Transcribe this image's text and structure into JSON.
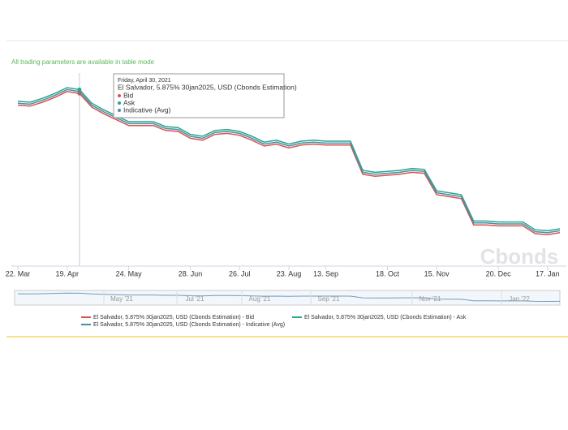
{
  "chart_data": {
    "type": "line",
    "note_text": "All trading parameters are available in table mode",
    "watermark": "Cbonds",
    "categories": [
      "22. Mar",
      null,
      null,
      null,
      "19. Apr",
      null,
      null,
      null,
      null,
      "24. May",
      null,
      null,
      null,
      null,
      "28. Jun",
      null,
      null,
      null,
      "26. Jul",
      null,
      null,
      null,
      "23. Aug",
      null,
      null,
      "13. Sep",
      null,
      null,
      null,
      null,
      "18. Oct",
      null,
      null,
      null,
      "15. Nov",
      null,
      null,
      null,
      null,
      "20. Dec",
      null,
      null,
      null,
      "17. Jan",
      null
    ],
    "ylim": [
      85,
      105
    ],
    "series": [
      {
        "name": "El Salvador, 5.875% 30jan2025, USD (Cbonds Estimation) - Bid",
        "color": "#d9534f",
        "values": [
          101.7,
          101.6,
          102.0,
          102.5,
          103.1,
          102.9,
          101.5,
          100.8,
          100.2,
          99.6,
          99.6,
          99.6,
          99.1,
          99.0,
          98.3,
          98.1,
          98.7,
          98.8,
          98.6,
          98.1,
          97.5,
          97.7,
          97.3,
          97.6,
          97.7,
          97.6,
          97.6,
          97.6,
          94.6,
          94.4,
          94.5,
          94.6,
          94.8,
          94.7,
          92.5,
          92.3,
          92.1,
          89.4,
          89.4,
          89.3,
          89.3,
          89.3,
          88.5,
          88.4,
          88.6
        ]
      },
      {
        "name": "El Salvador, 5.875% 30jan2025, USD (Cbonds Estimation) - Ask",
        "color": "#2ca58d",
        "values": [
          102.1,
          102.0,
          102.4,
          102.9,
          103.5,
          103.3,
          101.9,
          101.2,
          100.6,
          100.0,
          100.0,
          100.0,
          99.5,
          99.4,
          98.7,
          98.5,
          99.1,
          99.2,
          99.0,
          98.5,
          97.9,
          98.1,
          97.7,
          98.0,
          98.1,
          98.0,
          98.0,
          98.0,
          95.0,
          94.8,
          94.9,
          95.0,
          95.2,
          95.1,
          92.9,
          92.7,
          92.5,
          89.8,
          89.8,
          89.7,
          89.7,
          89.7,
          88.9,
          88.8,
          89.0
        ]
      },
      {
        "name": "El Salvador, 5.875% 30jan2025, USD (Cbonds Estimation) - Indicative (Avg)",
        "color": "#4a90a4",
        "values": [
          101.9,
          101.8,
          102.2,
          102.7,
          103.3,
          103.1,
          101.7,
          101.0,
          100.4,
          99.8,
          99.8,
          99.8,
          99.3,
          99.2,
          98.5,
          98.3,
          98.9,
          99.0,
          98.8,
          98.3,
          97.7,
          97.9,
          97.5,
          97.8,
          97.9,
          97.8,
          97.8,
          97.8,
          94.8,
          94.6,
          94.7,
          94.8,
          95.0,
          94.9,
          92.7,
          92.5,
          92.3,
          89.6,
          89.6,
          89.5,
          89.5,
          89.5,
          88.7,
          88.6,
          88.8
        ]
      }
    ],
    "tooltip": {
      "date": "Friday, April 30, 2021",
      "title": "El Salvador, 5.875% 30jan2025, USD (Cbonds Estimation)",
      "items": [
        "Bid",
        "Ask",
        "Indicative (Avg)"
      ]
    },
    "navigator_labels": [
      "May '21",
      "Jul '21",
      "Aug '21",
      "Sep '21",
      "Nov '21",
      "Jan '22"
    ]
  }
}
